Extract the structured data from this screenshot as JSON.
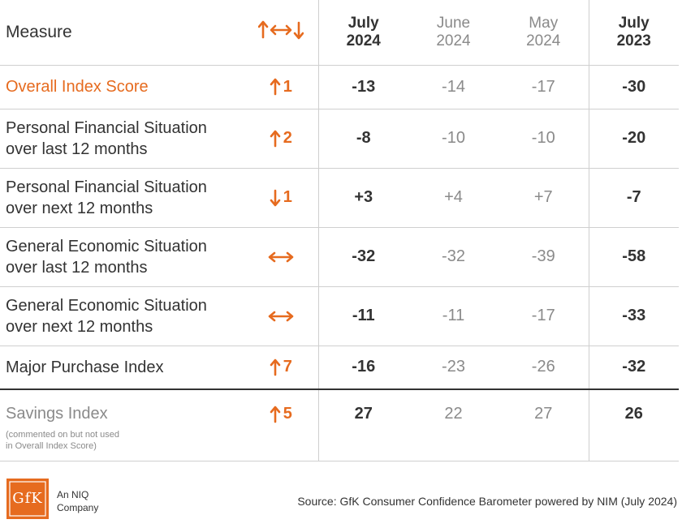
{
  "chart_data": {
    "type": "table",
    "header": {
      "measure": "Measure",
      "columns": [
        {
          "month": "July",
          "year": "2024"
        },
        {
          "month": "June",
          "year": "2024"
        },
        {
          "month": "May",
          "year": "2024"
        },
        {
          "month": "July",
          "year": "2023"
        }
      ]
    },
    "rows": [
      {
        "label_lines": [
          "Overall Index Score"
        ],
        "change_icon": "arrow-up-icon",
        "change_value": "1",
        "values": [
          "-13",
          "-14",
          "-17",
          "-30"
        ]
      },
      {
        "label_lines": [
          "Personal Financial Situation",
          "over last 12 months"
        ],
        "change_icon": "arrow-up-icon",
        "change_value": "2",
        "values": [
          "-8",
          "-10",
          "-10",
          "-20"
        ]
      },
      {
        "label_lines": [
          "Personal Financial Situation",
          "over next 12 months"
        ],
        "change_icon": "arrow-down-icon",
        "change_value": "1",
        "values": [
          "+3",
          "+4",
          "+7",
          "-7"
        ]
      },
      {
        "label_lines": [
          "General Economic Situation",
          "over last 12 months"
        ],
        "change_icon": "arrow-left-right-icon",
        "change_value": "",
        "values": [
          "-32",
          "-32",
          "-39",
          "-58"
        ]
      },
      {
        "label_lines": [
          "General Economic Situation",
          "over next 12 months"
        ],
        "change_icon": "arrow-left-right-icon",
        "change_value": "",
        "values": [
          "-11",
          "-11",
          "-17",
          "-33"
        ]
      },
      {
        "label_lines": [
          "Major Purchase Index"
        ],
        "change_icon": "arrow-up-icon",
        "change_value": "7",
        "values": [
          "-16",
          "-23",
          "-26",
          "-32"
        ]
      }
    ],
    "savings_row": {
      "label": "Savings Index",
      "note_lines": [
        "(commented on but not used",
        "in Overall Index Score)"
      ],
      "change_icon": "arrow-up-icon",
      "change_value": "5",
      "values": [
        "27",
        "22",
        "27",
        "26"
      ]
    },
    "colors": {
      "accent": "#e66b1f",
      "text": "#333333",
      "muted": "#8a8a8a",
      "grid": "#cfcfcf"
    }
  },
  "footer": {
    "logo_text": "GfK",
    "company_lines": [
      "An NIQ",
      "Company"
    ],
    "source": "Source: GfK Consumer Confidence Barometer powered by NIM (July 2024)"
  }
}
